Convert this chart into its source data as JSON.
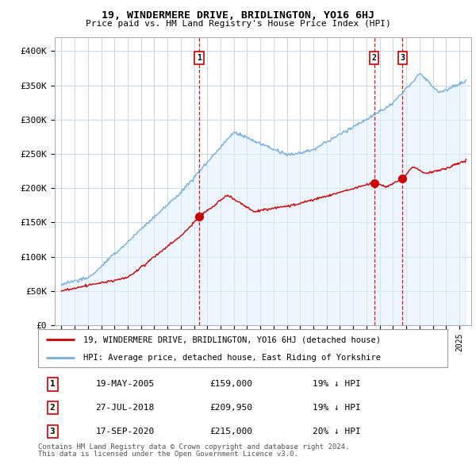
{
  "title": "19, WINDERMERE DRIVE, BRIDLINGTON, YO16 6HJ",
  "subtitle": "Price paid vs. HM Land Registry's House Price Index (HPI)",
  "background_color": "#ffffff",
  "plot_bg_color": "#ffffff",
  "grid_color": "#c8d8e8",
  "hpi_color": "#7aadda",
  "hpi_fill_color": "#ddeeff",
  "price_color": "#cc0000",
  "vline_color": "#cc0000",
  "ylim": [
    0,
    420000
  ],
  "yticks": [
    0,
    50000,
    100000,
    150000,
    200000,
    250000,
    300000,
    350000,
    400000
  ],
  "ytick_labels": [
    "£0",
    "£50K",
    "£100K",
    "£150K",
    "£200K",
    "£250K",
    "£300K",
    "£350K",
    "£400K"
  ],
  "transactions": [
    {
      "date_num": 2005.38,
      "price": 159000,
      "label": "1",
      "date_str": "19-MAY-2005",
      "pct": "19% ↓ HPI"
    },
    {
      "date_num": 2018.58,
      "price": 209950,
      "label": "2",
      "date_str": "27-JUL-2018",
      "pct": "19% ↓ HPI"
    },
    {
      "date_num": 2020.72,
      "price": 215000,
      "label": "3",
      "date_str": "17-SEP-2020",
      "pct": "20% ↓ HPI"
    }
  ],
  "legend_house_label": "19, WINDERMERE DRIVE, BRIDLINGTON, YO16 6HJ (detached house)",
  "legend_hpi_label": "HPI: Average price, detached house, East Riding of Yorkshire",
  "footer1": "Contains HM Land Registry data © Crown copyright and database right 2024.",
  "footer2": "This data is licensed under the Open Government Licence v3.0.",
  "table_rows": [
    [
      "1",
      "19-MAY-2005",
      "£159,000",
      "19% ↓ HPI"
    ],
    [
      "2",
      "27-JUL-2018",
      "£209,950",
      "19% ↓ HPI"
    ],
    [
      "3",
      "17-SEP-2020",
      "£215,000",
      "20% ↓ HPI"
    ]
  ]
}
